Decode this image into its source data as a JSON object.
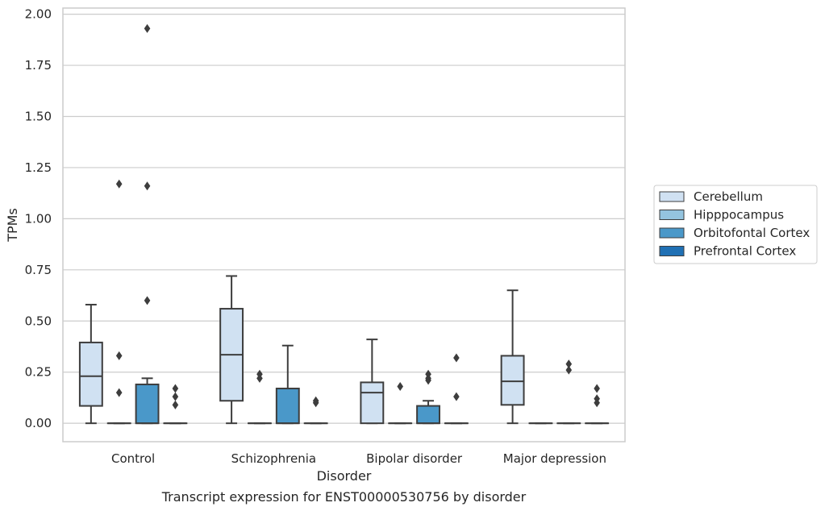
{
  "caption": "Transcript expression for ENST00000530756 by disorder",
  "chart_data": {
    "type": "box",
    "title": "",
    "xlabel": "Disorder",
    "ylabel": "TPMs",
    "ylim": [
      -0.09,
      2.03
    ],
    "yticks": [
      "0.00",
      "0.25",
      "0.50",
      "0.75",
      "1.00",
      "1.25",
      "1.50",
      "1.75",
      "2.00"
    ],
    "grid": "horizontal",
    "legend_position": "right",
    "categories": [
      "Control",
      "Schizophrenia",
      "Bipolar disorder",
      "Major depression"
    ],
    "series": [
      {
        "name": "Cerebellum",
        "color": "#d0e1f2",
        "boxes": [
          {
            "whislo": 0.0,
            "q1": 0.085,
            "med": 0.23,
            "q3": 0.395,
            "whishi": 0.58,
            "fliers": []
          },
          {
            "whislo": 0.0,
            "q1": 0.11,
            "med": 0.335,
            "q3": 0.56,
            "whishi": 0.72,
            "fliers": []
          },
          {
            "whislo": 0.0,
            "q1": 0.0,
            "med": 0.15,
            "q3": 0.2,
            "whishi": 0.41,
            "fliers": []
          },
          {
            "whislo": 0.0,
            "q1": 0.09,
            "med": 0.205,
            "q3": 0.33,
            "whishi": 0.65,
            "fliers": []
          }
        ]
      },
      {
        "name": "Hipppocampus",
        "color": "#94c4df",
        "boxes": [
          {
            "whislo": 0.0,
            "q1": 0.0,
            "med": 0.0,
            "q3": 0.0,
            "whishi": 0.0,
            "fliers": [
              0.15,
              0.33,
              1.17
            ]
          },
          {
            "whislo": 0.0,
            "q1": 0.0,
            "med": 0.0,
            "q3": 0.0,
            "whishi": 0.0,
            "fliers": [
              0.22,
              0.24
            ]
          },
          {
            "whislo": 0.0,
            "q1": 0.0,
            "med": 0.0,
            "q3": 0.0,
            "whishi": 0.0,
            "fliers": [
              0.18
            ]
          },
          {
            "whislo": 0.0,
            "q1": 0.0,
            "med": 0.0,
            "q3": 0.0,
            "whishi": 0.0,
            "fliers": []
          }
        ]
      },
      {
        "name": "Orbitofontal Cortex",
        "color": "#4a98c9",
        "boxes": [
          {
            "whislo": 0.0,
            "q1": 0.0,
            "med": 0.0,
            "q3": 0.19,
            "whishi": 0.22,
            "fliers": [
              0.6,
              1.16,
              1.93
            ]
          },
          {
            "whislo": 0.0,
            "q1": 0.0,
            "med": 0.0,
            "q3": 0.17,
            "whishi": 0.38,
            "fliers": []
          },
          {
            "whislo": 0.0,
            "q1": 0.0,
            "med": 0.0,
            "q3": 0.085,
            "whishi": 0.11,
            "fliers": [
              0.21,
              0.22,
              0.24
            ]
          },
          {
            "whislo": 0.0,
            "q1": 0.0,
            "med": 0.0,
            "q3": 0.0,
            "whishi": 0.0,
            "fliers": [
              0.26,
              0.29
            ]
          }
        ]
      },
      {
        "name": "Prefrontal Cortex",
        "color": "#2070b4",
        "boxes": [
          {
            "whislo": 0.0,
            "q1": 0.0,
            "med": 0.0,
            "q3": 0.0,
            "whishi": 0.0,
            "fliers": [
              0.09,
              0.13,
              0.17
            ]
          },
          {
            "whislo": 0.0,
            "q1": 0.0,
            "med": 0.0,
            "q3": 0.0,
            "whishi": 0.0,
            "fliers": [
              0.1,
              0.11
            ]
          },
          {
            "whislo": 0.0,
            "q1": 0.0,
            "med": 0.0,
            "q3": 0.0,
            "whishi": 0.0,
            "fliers": [
              0.13,
              0.32
            ]
          },
          {
            "whislo": 0.0,
            "q1": 0.0,
            "med": 0.0,
            "q3": 0.0,
            "whishi": 0.0,
            "fliers": [
              0.1,
              0.12,
              0.17
            ]
          }
        ]
      }
    ]
  }
}
